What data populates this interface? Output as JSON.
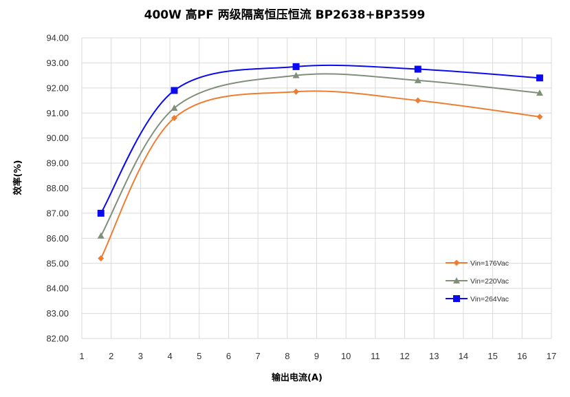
{
  "chart_data": {
    "type": "line",
    "title": "400W 高PF 两级隔离恒压恒流 BP2638+BP3599",
    "xlabel": "输出电流(A)",
    "ylabel": "效率(%)",
    "xlim": [
      1,
      17
    ],
    "ylim": [
      82,
      94
    ],
    "x_ticks": [
      "1",
      "2",
      "3",
      "4",
      "5",
      "6",
      "7",
      "8",
      "9",
      "10",
      "11",
      "12",
      "13",
      "14",
      "15",
      "16",
      "17"
    ],
    "y_ticks": [
      "82.00",
      "83.00",
      "84.00",
      "85.00",
      "86.00",
      "87.00",
      "88.00",
      "89.00",
      "90.00",
      "91.00",
      "92.00",
      "93.00",
      "94.00"
    ],
    "grid": true,
    "legend_position": "right",
    "series": [
      {
        "name": "Vin=176Vac",
        "color": "#ED7D31",
        "marker": "diamond",
        "points": [
          [
            1.65,
            85.2
          ],
          [
            4.15,
            90.8
          ],
          [
            8.3,
            91.85
          ],
          [
            12.45,
            91.5
          ],
          [
            16.6,
            90.85
          ]
        ]
      },
      {
        "name": "Vin=220Vac",
        "color": "#7F8F7A",
        "marker": "triangle",
        "points": [
          [
            1.65,
            86.1
          ],
          [
            4.15,
            91.2
          ],
          [
            8.3,
            92.5
          ],
          [
            12.45,
            92.3
          ],
          [
            16.6,
            91.8
          ]
        ]
      },
      {
        "name": "Vin=264Vac",
        "color": "#0A0AF0",
        "marker": "square",
        "points": [
          [
            1.65,
            87.0
          ],
          [
            4.15,
            91.9
          ],
          [
            8.3,
            92.85
          ],
          [
            12.45,
            92.75
          ],
          [
            16.6,
            92.4
          ]
        ]
      }
    ]
  }
}
